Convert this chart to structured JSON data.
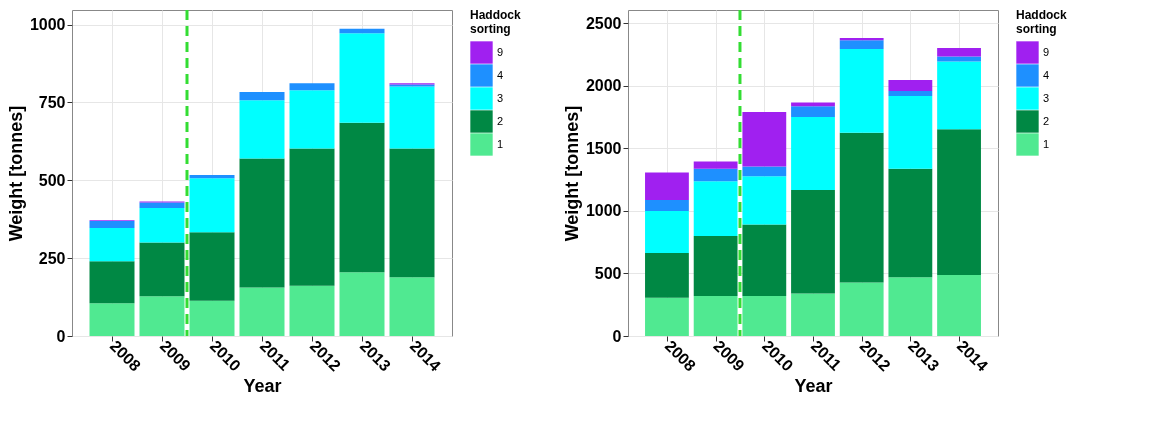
{
  "chart_data": [
    {
      "type": "bar",
      "stacked": true,
      "xlabel": "Year",
      "ylabel": "Weight [tonnes]",
      "legend_title": "Haddock sorting",
      "legend": "right",
      "grid": true,
      "x": [
        2008,
        2009,
        2010,
        2011,
        2012,
        2013,
        2014
      ],
      "xlim": [
        2007.2,
        2014.8
      ],
      "xticks": [
        2008,
        2009,
        2010,
        2011,
        2012,
        2013,
        2014
      ],
      "ylim": [
        0,
        1047
      ],
      "yticks": [
        0,
        250,
        500,
        750,
        1000
      ],
      "ref_lines": [
        {
          "axis": "x",
          "value": 2009.5,
          "color": "#33dd33",
          "line_style": "dashed"
        }
      ],
      "series": [
        {
          "name": "1",
          "color": "#50e991",
          "values": [
            105,
            128,
            113,
            156,
            161,
            205,
            189
          ]
        },
        {
          "name": "2",
          "color": "#008844",
          "values": [
            135,
            172,
            220,
            414,
            441,
            480,
            413
          ]
        },
        {
          "name": "3",
          "color": "#00ffff",
          "values": [
            107,
            111,
            174,
            187,
            187,
            287,
            199
          ]
        },
        {
          "name": "4",
          "color": "#1e90ff",
          "values": [
            22,
            18,
            10,
            27,
            23,
            15,
            7
          ]
        },
        {
          "name": "9",
          "color": "#a020f0",
          "values": [
            3,
            3,
            0,
            0,
            0,
            0,
            4
          ]
        }
      ]
    },
    {
      "type": "bar",
      "stacked": true,
      "xlabel": "Year",
      "ylabel": "Weight [tonnes]",
      "legend_title": "Haddock sorting",
      "legend": "right",
      "grid": true,
      "x": [
        2008,
        2009,
        2010,
        2011,
        2012,
        2013,
        2014
      ],
      "xlim": [
        2007.2,
        2014.8
      ],
      "xticks": [
        2008,
        2009,
        2010,
        2011,
        2012,
        2013,
        2014
      ],
      "ylim": [
        0,
        2606
      ],
      "yticks": [
        0,
        500,
        1000,
        1500,
        2000,
        2500
      ],
      "ref_lines": [
        {
          "axis": "x",
          "value": 2009.5,
          "color": "#33dd33",
          "line_style": "dashed"
        }
      ],
      "series": [
        {
          "name": "1",
          "color": "#50e991",
          "values": [
            306,
            319,
            319,
            339,
            427,
            469,
            487
          ]
        },
        {
          "name": "2",
          "color": "#008844",
          "values": [
            357,
            481,
            572,
            829,
            1197,
            867,
            1165
          ]
        },
        {
          "name": "3",
          "color": "#00ffff",
          "values": [
            337,
            438,
            386,
            583,
            671,
            583,
            542
          ]
        },
        {
          "name": "4",
          "color": "#1e90ff",
          "values": [
            88,
            99,
            78,
            85,
            70,
            39,
            41
          ]
        },
        {
          "name": "9",
          "color": "#a020f0",
          "values": [
            218,
            57,
            435,
            31,
            18,
            88,
            68
          ]
        }
      ]
    }
  ]
}
